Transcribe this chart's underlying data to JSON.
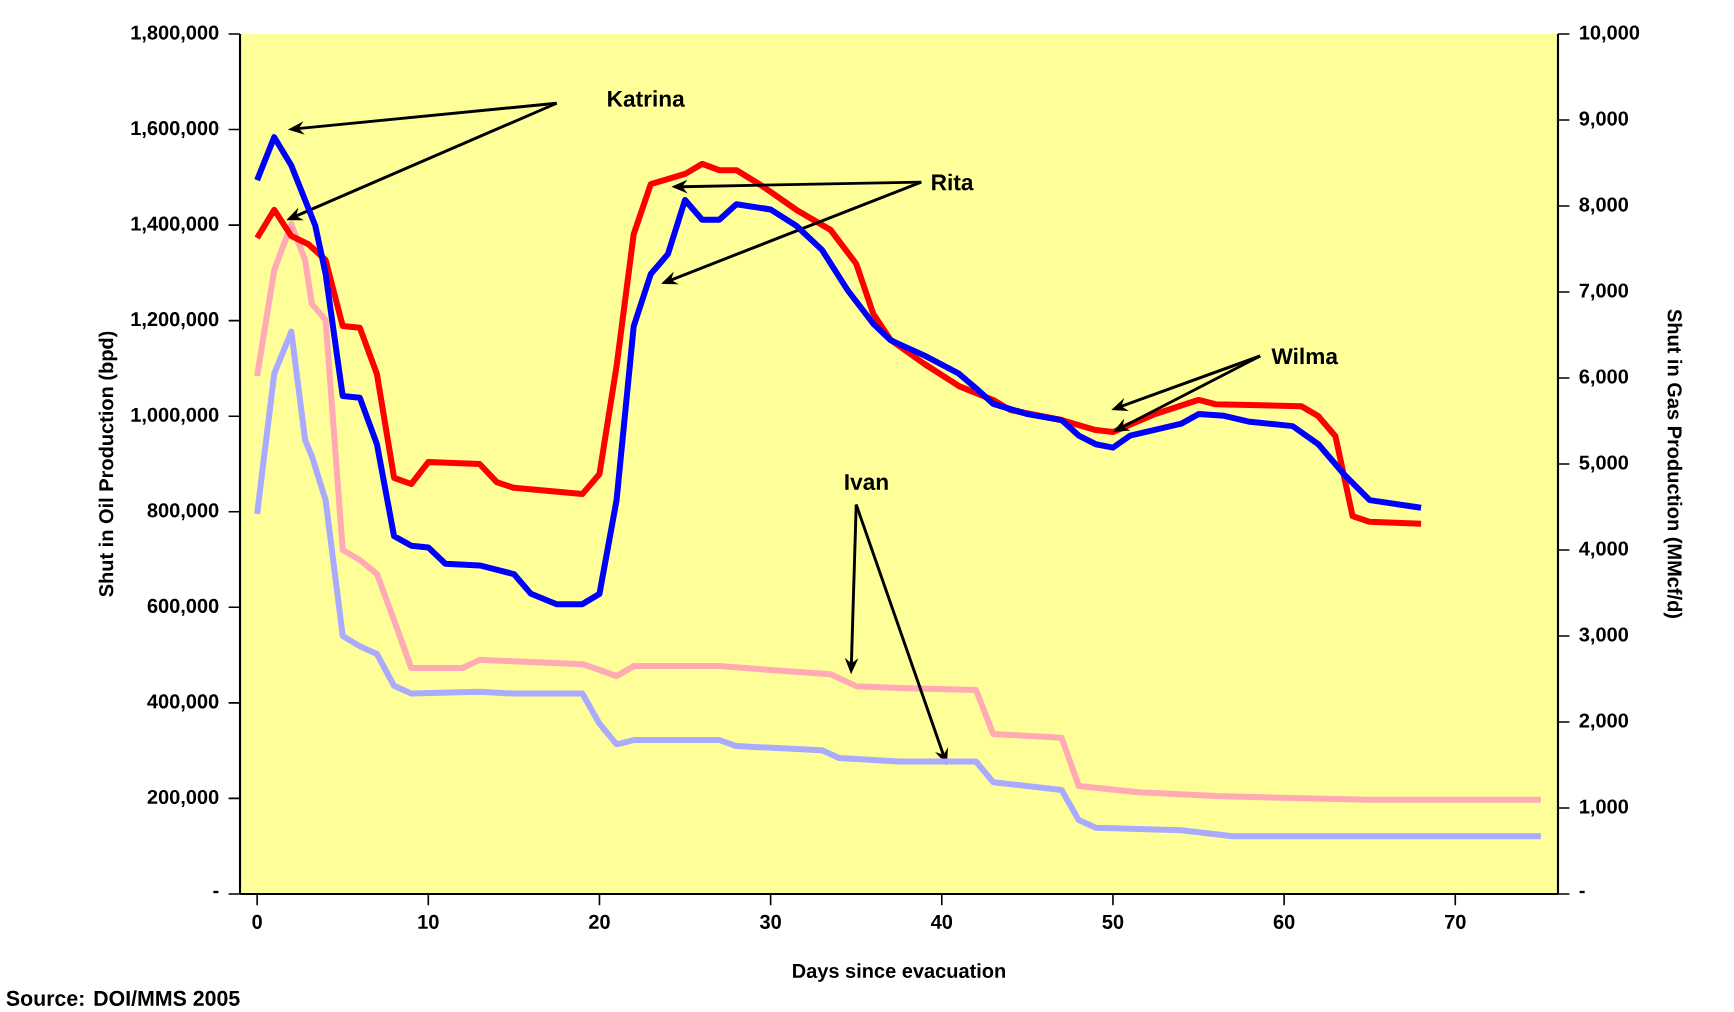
{
  "chart_data": {
    "type": "line",
    "xlabel": "Days since evacuation",
    "ylabel": "Shut in Oil Production (bpd)",
    "y2label": "Shut in Gas Production (MMcf/d)",
    "xlim": [
      -1,
      76
    ],
    "xticks": [
      0,
      10,
      20,
      30,
      40,
      50,
      60,
      70
    ],
    "ylim": [
      0,
      1800000
    ],
    "yticks": [
      {
        "value": 0,
        "label": "-"
      },
      {
        "value": 200000,
        "label": "200,000"
      },
      {
        "value": 400000,
        "label": "400,000"
      },
      {
        "value": 600000,
        "label": "600,000"
      },
      {
        "value": 800000,
        "label": "800,000"
      },
      {
        "value": 1000000,
        "label": "1,000,000"
      },
      {
        "value": 1200000,
        "label": "1,200,000"
      },
      {
        "value": 1400000,
        "label": "1,400,000"
      },
      {
        "value": 1600000,
        "label": "1,600,000"
      },
      {
        "value": 1800000,
        "label": "1,800,000"
      }
    ],
    "y2lim": [
      0,
      10000
    ],
    "y2ticks": [
      {
        "value": 0,
        "label": "-"
      },
      {
        "value": 1000,
        "label": "1,000"
      },
      {
        "value": 2000,
        "label": "2,000"
      },
      {
        "value": 3000,
        "label": "3,000"
      },
      {
        "value": 4000,
        "label": "4,000"
      },
      {
        "value": 5000,
        "label": "5,000"
      },
      {
        "value": 6000,
        "label": "6,000"
      },
      {
        "value": 7000,
        "label": "7,000"
      },
      {
        "value": 8000,
        "label": "8,000"
      },
      {
        "value": 9000,
        "label": "9,000"
      },
      {
        "value": 10000,
        "label": "10,000"
      }
    ],
    "series": [
      {
        "color": "#ffaab4",
        "x": [
          0,
          1,
          2,
          2.8,
          3.2,
          4,
          5,
          6,
          7,
          8,
          9,
          12,
          13,
          19,
          20,
          21,
          22,
          27,
          30,
          33.5,
          35,
          37.5,
          42,
          43,
          47,
          48,
          51.5,
          56,
          65,
          75
        ],
        "values": [
          1084000,
          1306000,
          1402000,
          1327000,
          1235000,
          1201000,
          720000,
          699000,
          670000,
          573000,
          473000,
          473000,
          490000,
          481000,
          469000,
          456000,
          477000,
          477000,
          469000,
          460000,
          435000,
          431000,
          427000,
          335000,
          327000,
          226000,
          213000,
          205000,
          197000,
          197000
        ]
      },
      {
        "color": "#aaaaff",
        "axis": "y2",
        "x": [
          0,
          1,
          2,
          2.8,
          3.2,
          4,
          5,
          6,
          7,
          8,
          9,
          13,
          15,
          19,
          20,
          21,
          22,
          27,
          28,
          33,
          34,
          37.5,
          42,
          43,
          47,
          48,
          49,
          54,
          57,
          75
        ],
        "values": [
          4420,
          6050,
          6540,
          5280,
          5090,
          4580,
          3000,
          2880,
          2790,
          2420,
          2330,
          2350,
          2330,
          2330,
          1980,
          1740,
          1790,
          1790,
          1720,
          1670,
          1580,
          1540,
          1540,
          1300,
          1210,
          860,
          770,
          740,
          670,
          670
        ]
      },
      {
        "color": "#ff0000",
        "x": [
          0,
          1,
          2,
          3,
          4,
          5,
          6,
          7,
          8,
          9,
          10,
          13,
          14,
          15,
          19,
          20,
          21,
          22,
          23,
          25,
          26,
          27,
          28,
          29.5,
          31.5,
          33.5,
          35,
          36,
          37,
          39,
          41,
          43,
          44,
          47,
          49,
          50,
          52.5,
          55,
          56,
          61,
          62,
          63,
          64,
          65,
          68
        ],
        "values": [
          1373000,
          1432000,
          1377000,
          1360000,
          1327000,
          1189000,
          1185000,
          1088000,
          871000,
          858000,
          904000,
          900000,
          862000,
          850000,
          837000,
          879000,
          1105000,
          1381000,
          1486000,
          1507000,
          1528000,
          1515000,
          1515000,
          1482000,
          1432000,
          1390000,
          1319000,
          1214000,
          1160000,
          1109000,
          1063000,
          1034000,
          1013000,
          992000,
          971000,
          967000,
          1005000,
          1034000,
          1025000,
          1021000,
          1000000,
          958000,
          791000,
          779000,
          775000
        ]
      },
      {
        "color": "#0000ff",
        "axis": "y2",
        "x": [
          0,
          1,
          2,
          3.4,
          4,
          5,
          6,
          7,
          8,
          9,
          10,
          11,
          13,
          15,
          16,
          17.5,
          19,
          20,
          21,
          22,
          23,
          24,
          25,
          26,
          27,
          28,
          30,
          31.5,
          33,
          34.5,
          36,
          37,
          39,
          41,
          42,
          43,
          45,
          47,
          48,
          49,
          50,
          51,
          54,
          55,
          56.5,
          58,
          60.5,
          62,
          63.5,
          65,
          68
        ],
        "values": [
          8300,
          8800,
          8470,
          7770,
          7210,
          5790,
          5770,
          5230,
          4160,
          4050,
          4030,
          3840,
          3820,
          3720,
          3490,
          3370,
          3370,
          3490,
          4580,
          6600,
          7210,
          7440,
          8070,
          7840,
          7840,
          8020,
          7960,
          7770,
          7490,
          7020,
          6630,
          6440,
          6260,
          6050,
          5880,
          5700,
          5580,
          5510,
          5330,
          5230,
          5190,
          5330,
          5470,
          5580,
          5560,
          5490,
          5440,
          5230,
          4880,
          4580,
          4490
        ]
      }
    ],
    "annotations": [
      "Katrina",
      {
        "text": "Rita",
        "x": 24.2,
        "y": 1480000
      },
      {
        "text": "Wilma",
        "x": 50,
        "y": 967000
      },
      {
        "text": "Ivan",
        "x": 34.7,
        "y": 460000
      },
      "Source: DOI/MMS 2005"
    ]
  }
}
